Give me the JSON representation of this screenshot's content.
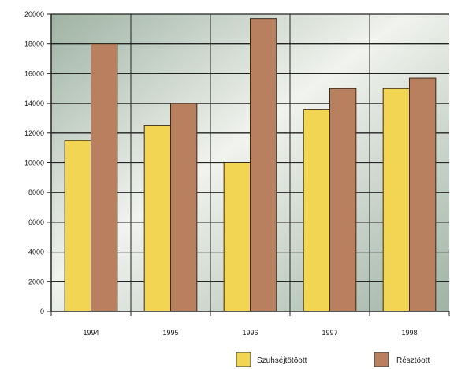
{
  "chart_data": {
    "type": "bar",
    "categories": [
      "1994",
      "1995",
      "1996",
      "1997",
      "1998"
    ],
    "series": [
      {
        "name": "Szuhséjtötöott",
        "values": [
          11500,
          12500,
          10000,
          13600,
          15000
        ],
        "color": "#f2d653"
      },
      {
        "name": "Résztöott",
        "values": [
          18000,
          14000,
          19700,
          15000,
          15700
        ],
        "color": "#b8805e"
      }
    ],
    "yticks": [
      0,
      2000,
      4000,
      6000,
      8000,
      10000,
      12000,
      14000,
      16000,
      18000,
      20000
    ],
    "ylim": [
      0,
      20000
    ],
    "grid": true,
    "legend_position": "bottom-right",
    "title": "",
    "xlabel": "",
    "ylabel": ""
  }
}
